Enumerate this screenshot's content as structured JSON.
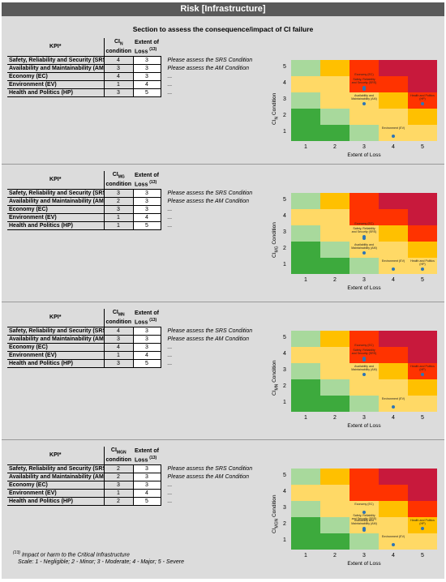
{
  "title": "Risk [Infrastructure]",
  "subtitle": "Section to assess the consequence/impact of CI failure",
  "colors": {
    "title_bg": "#5a5a5a",
    "dark_green": "#3daa3d",
    "light_green": "#a8d99c",
    "yellow": "#ffd966",
    "orange": "#ffc000",
    "red_orange": "#ff3300",
    "crimson": "#c8193c",
    "point": "#2e75b6"
  },
  "risk_matrix_colors": [
    [
      "light_green",
      "orange",
      "red_orange",
      "crimson",
      "crimson"
    ],
    [
      "yellow",
      "yellow",
      "red_orange",
      "red_orange",
      "crimson"
    ],
    [
      "light_green",
      "yellow",
      "yellow",
      "orange",
      "red_orange"
    ],
    [
      "dark_green",
      "light_green",
      "yellow",
      "yellow",
      "orange"
    ],
    [
      "dark_green",
      "dark_green",
      "light_green",
      "yellow",
      "yellow"
    ]
  ],
  "axis": {
    "x_ticks": [
      "1",
      "2",
      "3",
      "4",
      "5"
    ],
    "y_ticks": [
      "5",
      "4",
      "3",
      "2",
      "1"
    ],
    "x_label": "Extent of Loss",
    "y_label_prefix": "CI",
    "y_label_suffix": " Condition"
  },
  "table_header": {
    "kpi": "KPI*",
    "ci_prefix": "CI",
    "ci_suffix": "condition",
    "loss_line1": "Extent of",
    "loss_line2": "Loss",
    "loss_sup": "(13)"
  },
  "panels": [
    {
      "ci_sub": "N",
      "ylabel_sub": "N",
      "rows": [
        {
          "kpi": "Safety, Reliability and Security (SRS)",
          "ci": "4",
          "loss": "3",
          "note": "Please assess the SRS Condition"
        },
        {
          "kpi": "Availability and Maintainability (AM",
          "ci": "3",
          "loss": "3",
          "note": "Please assess the AM Condition"
        },
        {
          "kpi": "Economy (EC)",
          "ci": "4",
          "loss": "3",
          "note": "..."
        },
        {
          "kpi": "Environment (EV)",
          "ci": "1",
          "loss": "4",
          "note": "..."
        },
        {
          "kpi": "Health and Politics (HP)",
          "ci": "3",
          "loss": "5",
          "note": "..."
        }
      ],
      "points": [
        {
          "label": "Safety, Reliability and Security (SRS)",
          "x": 3,
          "y": 4
        },
        {
          "label": "Economy (EC)",
          "x": 3,
          "y": 4
        },
        {
          "label": "Availability and Maintainability (AM)",
          "x": 3,
          "y": 3
        },
        {
          "label": "Health and Politics (HP)",
          "x": 5,
          "y": 3
        },
        {
          "label": "Environment (EV)",
          "x": 4,
          "y": 1
        }
      ]
    },
    {
      "ci_sub": "MG",
      "ylabel_sub": "MG",
      "rows": [
        {
          "kpi": "Safety, Reliability and Security (SRS)",
          "ci": "3",
          "loss": "3",
          "note": "Please assess the SRS Condition"
        },
        {
          "kpi": "Availability and Maintainability (AM",
          "ci": "2",
          "loss": "3",
          "note": "Please assess the AM Condition"
        },
        {
          "kpi": "Economy (EC)",
          "ci": "3",
          "loss": "3",
          "note": "..."
        },
        {
          "kpi": "Environment (EV)",
          "ci": "1",
          "loss": "4",
          "note": "..."
        },
        {
          "kpi": "Health and Politics (HP)",
          "ci": "1",
          "loss": "5",
          "note": "..."
        }
      ],
      "points": [
        {
          "label": "Safety, Reliability and Security (SRS)",
          "x": 3,
          "y": 3
        },
        {
          "label": "Economy (EC)",
          "x": 3,
          "y": 3
        },
        {
          "label": "Availability and Maintainability (AM)",
          "x": 3,
          "y": 2
        },
        {
          "label": "Health and Politics (HP)",
          "x": 5,
          "y": 1
        },
        {
          "label": "Environment (EV)",
          "x": 4,
          "y": 1
        }
      ]
    },
    {
      "ci_sub": "MN",
      "ylabel_sub": "MN",
      "rows": [
        {
          "kpi": "Safety, Reliability and Security (SRS)",
          "ci": "4",
          "loss": "3",
          "note": "Please assess the SRS Condition"
        },
        {
          "kpi": "Availability and Maintainability (AM",
          "ci": "3",
          "loss": "3",
          "note": "Please assess the AM Condition"
        },
        {
          "kpi": "Economy (EC)",
          "ci": "4",
          "loss": "3",
          "note": "..."
        },
        {
          "kpi": "Environment (EV)",
          "ci": "1",
          "loss": "4",
          "note": "..."
        },
        {
          "kpi": "Health and Politics (HP)",
          "ci": "3",
          "loss": "5",
          "note": "..."
        }
      ],
      "points": [
        {
          "label": "Safety, Reliability and Security (SRS)",
          "x": 3,
          "y": 4
        },
        {
          "label": "Economy (EC)",
          "x": 3,
          "y": 4
        },
        {
          "label": "Availability and Maintainability (AM)",
          "x": 3,
          "y": 3
        },
        {
          "label": "Health and Politics (HP)",
          "x": 5,
          "y": 3
        },
        {
          "label": "Environment (EV)",
          "x": 4,
          "y": 1
        }
      ]
    },
    {
      "ci_sub": "MGN",
      "ylabel_sub": "MGN",
      "rows": [
        {
          "kpi": "Safety, Reliability and Security (SRS)",
          "ci": "2",
          "loss": "3",
          "note": "Please assess the SRS Condition"
        },
        {
          "kpi": "Availability and Maintainability (AM",
          "ci": "2",
          "loss": "3",
          "note": "Please assess the AM Condition"
        },
        {
          "kpi": "Economy (EC)",
          "ci": "3",
          "loss": "3",
          "note": "..."
        },
        {
          "kpi": "Environment (EV)",
          "ci": "1",
          "loss": "4",
          "note": "..."
        },
        {
          "kpi": "Health and Politics (HP)",
          "ci": "2",
          "loss": "5",
          "note": "..."
        }
      ],
      "points": [
        {
          "label": "Economy (EC)",
          "x": 3,
          "y": 3
        },
        {
          "label": "Availability and Maintainability (AM)",
          "x": 3,
          "y": 2
        },
        {
          "label": "Safety, Reliability and Security (SRS)",
          "x": 3,
          "y": 2
        },
        {
          "label": "Health and Politics (HP)",
          "x": 5,
          "y": 2
        },
        {
          "label": "Environment (EV)",
          "x": 4,
          "y": 1
        }
      ]
    }
  ],
  "footnote": {
    "sup": "(13)",
    "line1": "Impact or harm to the Critical Infrastructure",
    "line2": "Scale: 1 - Negligible; 2 - Minor; 3 - Moderate; 4 - Major; 5 - Severe"
  }
}
